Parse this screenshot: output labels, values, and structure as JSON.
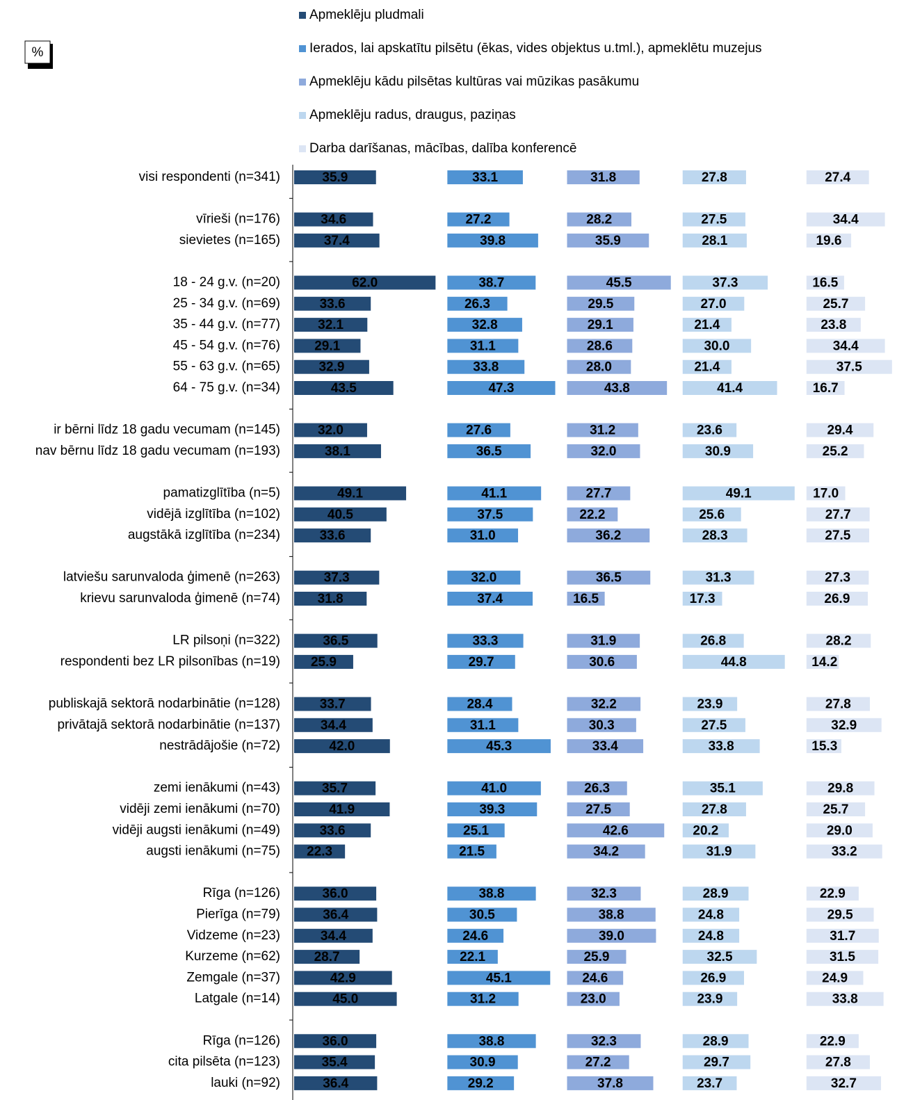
{
  "chart_data": {
    "type": "bar",
    "orientation": "horizontal",
    "annotation": "%",
    "categories": [
      "visi respondenti (n=341)",
      null,
      "vīrieši (n=176)",
      "sievietes (n=165)",
      null,
      "18 - 24 g.v. (n=20)",
      "25 - 34 g.v. (n=69)",
      "35 - 44 g.v. (n=77)",
      "45 - 54 g.v. (n=76)",
      "55 - 63 g.v. (n=65)",
      "64 - 75 g.v. (n=34)",
      null,
      "ir bērni līdz 18 gadu vecumam (n=145)",
      "nav bērnu līdz 18 gadu vecumam (n=193)",
      null,
      "pamatizglītība (n=5)",
      "vidējā izglītība (n=102)",
      "augstākā izglītība (n=234)",
      null,
      "latviešu sarunvaloda ģimenē (n=263)",
      "krievu sarunvaloda ģimenē (n=74)",
      null,
      "LR pilsoņi (n=322)",
      "respondenti bez LR pilsonības (n=19)",
      null,
      "publiskajā sektorā nodarbinātie (n=128)",
      "privātajā sektorā nodarbinātie (n=137)",
      "nestrādājošie (n=72)",
      null,
      "zemi ienākumi (n=43)",
      "vidēji zemi ienākumi (n=70)",
      "vidēji augsti ienākumi (n=49)",
      "augsti ienākumi (n=75)",
      null,
      "Rīga (n=126)",
      "Pierīga (n=79)",
      "Vidzeme (n=23)",
      "Kurzeme (n=62)",
      "Zemgale (n=37)",
      "Latgale (n=14)",
      null,
      "Rīga (n=126)",
      "cita pilsēta (n=123)",
      "lauki (n=92)"
    ],
    "series": [
      {
        "name": "Apmeklēju pludmali",
        "color": "#244b75",
        "values": [
          35.9,
          null,
          34.6,
          37.4,
          null,
          62.0,
          33.6,
          32.1,
          29.1,
          32.9,
          43.5,
          null,
          32.0,
          38.1,
          null,
          49.1,
          40.5,
          33.6,
          null,
          37.3,
          31.8,
          null,
          36.5,
          25.9,
          null,
          33.7,
          34.4,
          42.0,
          null,
          35.7,
          41.9,
          33.6,
          22.3,
          null,
          36.0,
          36.4,
          34.4,
          28.7,
          42.9,
          45.0,
          null,
          36.0,
          35.4,
          36.4
        ],
        "value_labels": [
          "35.9",
          null,
          "34.6",
          "37.4",
          null,
          "62.0",
          "33.6",
          "32.1",
          "29.1",
          "32.9",
          "43.5",
          null,
          "32.0",
          "38.1",
          null,
          "49.1",
          "40.5",
          "33.6",
          null,
          "37.3",
          "31.8",
          null,
          "36.5",
          "25.9",
          null,
          "33.7",
          "34.4",
          "42.0",
          null,
          "35.7",
          "41.9",
          "33.6",
          "22.3",
          null,
          "36.0",
          "36.4",
          "34.4",
          "28.7",
          "42.9",
          "45.0",
          null,
          "36.0",
          "35.4",
          "36.4"
        ]
      },
      {
        "name": "Ierados, lai apskatītu pilsētu (ēkas, vides objektus u.tml.), apmeklētu muzejus",
        "color": "#5093d3",
        "values": [
          33.1,
          null,
          27.2,
          39.8,
          null,
          38.7,
          26.3,
          32.8,
          31.1,
          33.8,
          47.3,
          null,
          27.6,
          36.5,
          null,
          41.1,
          37.5,
          31.0,
          null,
          32.0,
          37.4,
          null,
          33.3,
          29.7,
          null,
          28.4,
          31.1,
          45.3,
          null,
          41.0,
          39.3,
          25.1,
          21.5,
          null,
          38.8,
          30.5,
          24.6,
          22.1,
          45.1,
          31.2,
          null,
          38.8,
          30.9,
          29.2
        ],
        "value_labels": [
          "33.1",
          null,
          "27.2",
          "39.8",
          null,
          "38.7",
          "26.3",
          "32.8",
          "31.1",
          "33.8",
          "47.3",
          null,
          "27.6",
          "36.5",
          null,
          "41.1",
          "37.5",
          "31.0",
          null,
          "32.0",
          "37.4",
          null,
          "33.3",
          "29.7",
          null,
          "28.4",
          "31.1",
          "45.3",
          null,
          "41.0",
          "39.3",
          "25.1",
          "21.5",
          null,
          "38.8",
          "30.5",
          "24.6",
          "22.1",
          "45.1",
          "31.2",
          null,
          "38.8",
          "30.9",
          "29.2"
        ]
      },
      {
        "name": "Apmeklēju kādu pilsētas kultūras vai mūzikas pasākumu",
        "color": "#8eaadc",
        "values": [
          31.8,
          null,
          28.2,
          35.9,
          null,
          45.5,
          29.5,
          29.1,
          28.6,
          28.0,
          43.8,
          null,
          31.2,
          32.0,
          null,
          27.7,
          22.2,
          36.2,
          null,
          36.5,
          16.5,
          null,
          31.9,
          30.6,
          null,
          32.2,
          30.3,
          33.4,
          null,
          26.3,
          27.5,
          42.6,
          34.2,
          null,
          32.3,
          38.8,
          39.0,
          25.9,
          24.6,
          23.0,
          null,
          32.3,
          27.2,
          37.8
        ],
        "value_labels": [
          "31.8",
          null,
          "28.2",
          "35.9",
          null,
          "45.5",
          "29.5",
          "29.1",
          "28.6",
          "28.0",
          "43.8",
          null,
          "31.2",
          "32.0",
          null,
          "27.7",
          "22.2",
          "36.2",
          null,
          "36.5",
          "16.5",
          null,
          "31.9",
          "30.6",
          null,
          "32.2",
          "30.3",
          "33.4",
          null,
          "26.3",
          "27.5",
          "42.6",
          "34.2",
          null,
          "32.3",
          "38.8",
          "39.0",
          "25.9",
          "24.6",
          "23.0",
          null,
          "32.3",
          "27.2",
          "37.8"
        ]
      },
      {
        "name": "Apmeklēju radus, draugus, paziņas",
        "color": "#bdd7ef",
        "values": [
          27.8,
          null,
          27.5,
          28.1,
          null,
          37.3,
          27.0,
          21.4,
          30.0,
          21.4,
          41.4,
          null,
          23.6,
          30.9,
          null,
          49.1,
          25.6,
          28.3,
          null,
          31.3,
          17.3,
          null,
          26.8,
          44.8,
          null,
          23.9,
          27.5,
          33.8,
          null,
          35.1,
          27.8,
          20.2,
          31.9,
          null,
          28.9,
          24.8,
          24.8,
          32.5,
          26.9,
          23.9,
          null,
          28.9,
          29.7,
          23.7
        ],
        "value_labels": [
          "27.8",
          null,
          "27.5",
          "28.1",
          null,
          "37.3",
          "27.0",
          "21.4",
          "30.0",
          "21.4",
          "41.4",
          null,
          "23.6",
          "30.9",
          null,
          "49.1",
          "25.6",
          "28.3",
          null,
          "31.3",
          "17.3",
          null,
          "26.8",
          "44.8",
          null,
          "23.9",
          "27.5",
          "33.8",
          null,
          "35.1",
          "27.8",
          "20.2",
          "31.9",
          null,
          "28.9",
          "24.8",
          "24.8",
          "32.5",
          "26.9",
          "23.9",
          null,
          "28.9",
          "29.7",
          "23.7"
        ]
      },
      {
        "name": "Darba darīšanas, mācības, dalība konferencē",
        "color": "#dce5f4",
        "values": [
          27.4,
          null,
          34.4,
          19.6,
          null,
          16.5,
          25.7,
          23.8,
          34.4,
          37.5,
          16.7,
          null,
          29.4,
          25.2,
          null,
          17.0,
          27.7,
          27.5,
          null,
          27.3,
          26.9,
          null,
          28.2,
          14.2,
          null,
          27.8,
          32.9,
          15.3,
          null,
          29.8,
          25.7,
          29.0,
          33.2,
          null,
          22.9,
          29.5,
          31.7,
          31.5,
          24.9,
          33.8,
          null,
          22.9,
          27.8,
          32.7
        ],
        "value_labels": [
          "27.4",
          null,
          "34.4",
          "19.6",
          null,
          "16.5",
          "25.7",
          "23.8",
          "34.4",
          "37.5",
          "16.7",
          null,
          "29.4",
          "25.2",
          null,
          "17.0",
          "27.7",
          "27.5",
          null,
          "27.3",
          "26.9",
          null,
          "28.2",
          "14.2",
          null,
          "27.8",
          "32.9",
          "15.3",
          null,
          "29.8",
          "25.7",
          "29.0",
          "33.2",
          null,
          "22.9",
          "29.5",
          "31.7",
          "31.5",
          "24.9",
          "33.8",
          null,
          "22.9",
          "27.8",
          "32.7"
        ]
      }
    ]
  }
}
